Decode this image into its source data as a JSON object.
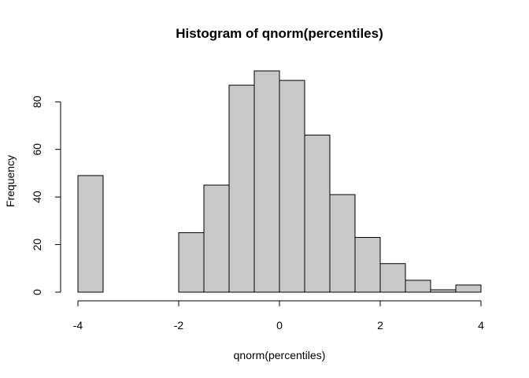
{
  "chart_data": {
    "type": "bar",
    "title": "Histogram of qnorm(percentiles)",
    "xlabel": "qnorm(percentiles)",
    "ylabel": "Frequency",
    "xlim": [
      -4,
      4
    ],
    "ylim": [
      0,
      93
    ],
    "x_ticks": [
      -4,
      -2,
      0,
      2,
      4
    ],
    "y_ticks": [
      0,
      20,
      40,
      60,
      80
    ],
    "bins": [
      {
        "start": -4.0,
        "end": -3.5,
        "value": 49
      },
      {
        "start": -3.5,
        "end": -3.0,
        "value": 0
      },
      {
        "start": -3.0,
        "end": -2.5,
        "value": 0
      },
      {
        "start": -2.5,
        "end": -2.0,
        "value": 0
      },
      {
        "start": -2.0,
        "end": -1.5,
        "value": 25
      },
      {
        "start": -1.5,
        "end": -1.0,
        "value": 45
      },
      {
        "start": -1.0,
        "end": -0.5,
        "value": 87
      },
      {
        "start": -0.5,
        "end": 0.0,
        "value": 93
      },
      {
        "start": 0.0,
        "end": 0.5,
        "value": 89
      },
      {
        "start": 0.5,
        "end": 1.0,
        "value": 66
      },
      {
        "start": 1.0,
        "end": 1.5,
        "value": 41
      },
      {
        "start": 1.5,
        "end": 2.0,
        "value": 23
      },
      {
        "start": 2.0,
        "end": 2.5,
        "value": 12
      },
      {
        "start": 2.5,
        "end": 3.0,
        "value": 5
      },
      {
        "start": 3.0,
        "end": 3.5,
        "value": 1
      },
      {
        "start": 3.5,
        "end": 4.0,
        "value": 3
      }
    ],
    "bar_fill": "#c8c8c8",
    "bar_stroke": "#000000",
    "grid": false
  }
}
